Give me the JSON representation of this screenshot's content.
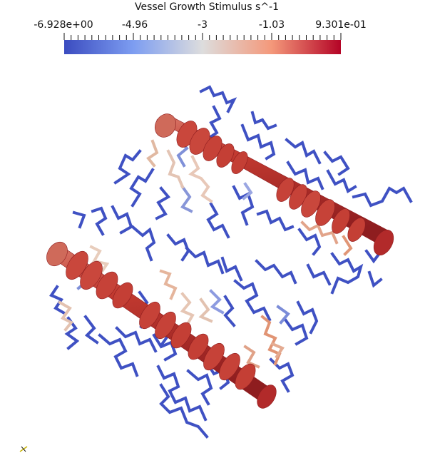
{
  "colorbar": {
    "title": "Vessel Growth Stimulus s^-1",
    "ticks": [
      "-6.928e+00",
      "-4.96",
      "-3",
      "-1.03",
      "9.301e-01"
    ],
    "min": -6.928,
    "max": 0.9301,
    "colors": [
      "#3b4cc0",
      "#7d9df1",
      "#dddddd",
      "#f4987a",
      "#b40426"
    ]
  },
  "scene": {
    "background": "#ffffff",
    "vessel_color": "#b22a2a",
    "network_low_color": "#3b4cc0"
  }
}
